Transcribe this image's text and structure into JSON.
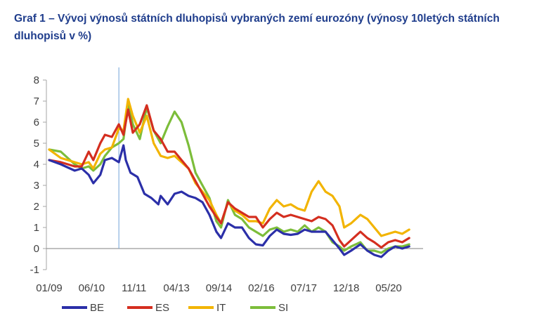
{
  "title_line1": "Graf 1 – Vývoj výnosů státních dluhopisů vybraných zemí eurozóny (výnosy 10letých státních",
  "title_line2": "dluhopisů v %)",
  "chart_data": {
    "type": "line",
    "title": "Graf 1 – Vývoj výnosů státních dluhopisů vybraných zemí eurozóny (výnosy 10letých státních dluhopisů v %)",
    "xlabel": "",
    "ylabel": "",
    "x_range": [
      "2009-01",
      "2022-06"
    ],
    "ylim": [
      -1,
      8
    ],
    "y_ticks": [
      -1,
      0,
      1,
      2,
      3,
      4,
      5,
      6,
      7,
      8
    ],
    "x_tick_labels": [
      "01/09",
      "06/10",
      "11/11",
      "04/13",
      "09/14",
      "02/16",
      "07/17",
      "12/18",
      "05/20"
    ],
    "grid": false,
    "legend_position": "bottom",
    "vertical_marker": "2011-07",
    "series": [
      {
        "name": "BE",
        "color": "#2b2fa8",
        "points": [
          [
            "2009-01",
            4.2
          ],
          [
            "2009-06",
            4.0
          ],
          [
            "2009-12",
            3.7
          ],
          [
            "2010-03",
            3.8
          ],
          [
            "2010-06",
            3.5
          ],
          [
            "2010-08",
            3.1
          ],
          [
            "2010-11",
            3.5
          ],
          [
            "2011-01",
            4.2
          ],
          [
            "2011-04",
            4.3
          ],
          [
            "2011-07",
            4.1
          ],
          [
            "2011-09",
            4.9
          ],
          [
            "2011-10",
            4.2
          ],
          [
            "2011-12",
            3.6
          ],
          [
            "2012-03",
            3.4
          ],
          [
            "2012-06",
            2.6
          ],
          [
            "2012-09",
            2.4
          ],
          [
            "2012-12",
            2.1
          ],
          [
            "2013-01",
            2.5
          ],
          [
            "2013-04",
            2.1
          ],
          [
            "2013-07",
            2.6
          ],
          [
            "2013-10",
            2.7
          ],
          [
            "2014-01",
            2.5
          ],
          [
            "2014-04",
            2.4
          ],
          [
            "2014-07",
            2.2
          ],
          [
            "2014-10",
            1.6
          ],
          [
            "2015-01",
            0.8
          ],
          [
            "2015-03",
            0.5
          ],
          [
            "2015-06",
            1.2
          ],
          [
            "2015-09",
            1.0
          ],
          [
            "2015-12",
            1.0
          ],
          [
            "2016-03",
            0.5
          ],
          [
            "2016-06",
            0.2
          ],
          [
            "2016-09",
            0.15
          ],
          [
            "2016-12",
            0.6
          ],
          [
            "2017-03",
            0.9
          ],
          [
            "2017-06",
            0.7
          ],
          [
            "2017-09",
            0.65
          ],
          [
            "2017-12",
            0.7
          ],
          [
            "2018-03",
            0.9
          ],
          [
            "2018-06",
            0.8
          ],
          [
            "2018-09",
            0.8
          ],
          [
            "2018-12",
            0.8
          ],
          [
            "2019-03",
            0.4
          ],
          [
            "2019-06",
            0.0
          ],
          [
            "2019-08",
            -0.3
          ],
          [
            "2019-11",
            -0.1
          ],
          [
            "2020-03",
            0.2
          ],
          [
            "2020-06",
            -0.1
          ],
          [
            "2020-09",
            -0.3
          ],
          [
            "2020-12",
            -0.4
          ],
          [
            "2021-03",
            -0.1
          ],
          [
            "2021-06",
            0.1
          ],
          [
            "2021-09",
            0.0
          ],
          [
            "2021-12",
            0.1
          ]
        ]
      },
      {
        "name": "ES",
        "color": "#d42e1f",
        "points": [
          [
            "2009-01",
            4.2
          ],
          [
            "2009-06",
            4.1
          ],
          [
            "2009-12",
            3.9
          ],
          [
            "2010-03",
            3.9
          ],
          [
            "2010-06",
            4.6
          ],
          [
            "2010-08",
            4.2
          ],
          [
            "2010-11",
            5.0
          ],
          [
            "2011-01",
            5.4
          ],
          [
            "2011-04",
            5.3
          ],
          [
            "2011-07",
            5.9
          ],
          [
            "2011-09",
            5.4
          ],
          [
            "2011-11",
            6.6
          ],
          [
            "2012-01",
            5.5
          ],
          [
            "2012-04",
            5.9
          ],
          [
            "2012-07",
            6.8
          ],
          [
            "2012-10",
            5.6
          ],
          [
            "2013-01",
            5.2
          ],
          [
            "2013-04",
            4.6
          ],
          [
            "2013-07",
            4.6
          ],
          [
            "2013-10",
            4.2
          ],
          [
            "2014-01",
            3.8
          ],
          [
            "2014-04",
            3.2
          ],
          [
            "2014-07",
            2.6
          ],
          [
            "2014-10",
            2.0
          ],
          [
            "2015-01",
            1.5
          ],
          [
            "2015-03",
            1.2
          ],
          [
            "2015-06",
            2.2
          ],
          [
            "2015-09",
            1.9
          ],
          [
            "2015-12",
            1.7
          ],
          [
            "2016-03",
            1.5
          ],
          [
            "2016-06",
            1.5
          ],
          [
            "2016-09",
            1.0
          ],
          [
            "2016-12",
            1.4
          ],
          [
            "2017-03",
            1.7
          ],
          [
            "2017-06",
            1.5
          ],
          [
            "2017-09",
            1.6
          ],
          [
            "2017-12",
            1.5
          ],
          [
            "2018-03",
            1.4
          ],
          [
            "2018-06",
            1.3
          ],
          [
            "2018-09",
            1.5
          ],
          [
            "2018-12",
            1.4
          ],
          [
            "2019-03",
            1.1
          ],
          [
            "2019-06",
            0.4
          ],
          [
            "2019-08",
            0.1
          ],
          [
            "2019-11",
            0.4
          ],
          [
            "2020-03",
            0.8
          ],
          [
            "2020-06",
            0.5
          ],
          [
            "2020-09",
            0.3
          ],
          [
            "2020-12",
            0.05
          ],
          [
            "2021-03",
            0.3
          ],
          [
            "2021-06",
            0.4
          ],
          [
            "2021-09",
            0.3
          ],
          [
            "2021-12",
            0.5
          ]
        ]
      },
      {
        "name": "IT",
        "color": "#f2b400",
        "points": [
          [
            "2009-01",
            4.7
          ],
          [
            "2009-06",
            4.3
          ],
          [
            "2009-12",
            4.1
          ],
          [
            "2010-03",
            4.0
          ],
          [
            "2010-06",
            4.1
          ],
          [
            "2010-08",
            3.8
          ],
          [
            "2010-11",
            4.5
          ],
          [
            "2011-01",
            4.7
          ],
          [
            "2011-04",
            4.8
          ],
          [
            "2011-07",
            5.7
          ],
          [
            "2011-09",
            5.6
          ],
          [
            "2011-11",
            7.1
          ],
          [
            "2012-01",
            6.3
          ],
          [
            "2012-04",
            5.5
          ],
          [
            "2012-07",
            6.3
          ],
          [
            "2012-10",
            5.0
          ],
          [
            "2013-01",
            4.4
          ],
          [
            "2013-04",
            4.3
          ],
          [
            "2013-07",
            4.4
          ],
          [
            "2013-10",
            4.1
          ],
          [
            "2014-01",
            3.8
          ],
          [
            "2014-04",
            3.1
          ],
          [
            "2014-07",
            2.7
          ],
          [
            "2014-10",
            2.3
          ],
          [
            "2015-01",
            1.6
          ],
          [
            "2015-03",
            1.2
          ],
          [
            "2015-06",
            2.2
          ],
          [
            "2015-09",
            1.8
          ],
          [
            "2015-12",
            1.6
          ],
          [
            "2016-03",
            1.3
          ],
          [
            "2016-06",
            1.3
          ],
          [
            "2016-09",
            1.2
          ],
          [
            "2016-12",
            1.9
          ],
          [
            "2017-03",
            2.3
          ],
          [
            "2017-06",
            2.0
          ],
          [
            "2017-09",
            2.1
          ],
          [
            "2017-12",
            1.9
          ],
          [
            "2018-03",
            1.8
          ],
          [
            "2018-06",
            2.7
          ],
          [
            "2018-09",
            3.2
          ],
          [
            "2018-12",
            2.7
          ],
          [
            "2019-03",
            2.5
          ],
          [
            "2019-06",
            2.0
          ],
          [
            "2019-08",
            1.0
          ],
          [
            "2019-11",
            1.2
          ],
          [
            "2020-03",
            1.6
          ],
          [
            "2020-06",
            1.4
          ],
          [
            "2020-09",
            1.0
          ],
          [
            "2020-12",
            0.6
          ],
          [
            "2021-03",
            0.7
          ],
          [
            "2021-06",
            0.8
          ],
          [
            "2021-09",
            0.7
          ],
          [
            "2021-12",
            0.9
          ]
        ]
      },
      {
        "name": "SI",
        "color": "#7cbd3a",
        "points": [
          [
            "2009-01",
            4.7
          ],
          [
            "2009-06",
            4.6
          ],
          [
            "2009-12",
            4.0
          ],
          [
            "2010-03",
            3.8
          ],
          [
            "2010-06",
            3.9
          ],
          [
            "2010-08",
            3.7
          ],
          [
            "2010-11",
            4.0
          ],
          [
            "2011-01",
            4.4
          ],
          [
            "2011-04",
            4.8
          ],
          [
            "2011-07",
            5.0
          ],
          [
            "2011-09",
            5.2
          ],
          [
            "2011-11",
            6.9
          ],
          [
            "2012-01",
            5.9
          ],
          [
            "2012-04",
            5.2
          ],
          [
            "2012-07",
            6.7
          ],
          [
            "2012-10",
            5.6
          ],
          [
            "2013-01",
            5.0
          ],
          [
            "2013-04",
            5.8
          ],
          [
            "2013-07",
            6.5
          ],
          [
            "2013-10",
            6.0
          ],
          [
            "2014-01",
            4.9
          ],
          [
            "2014-04",
            3.6
          ],
          [
            "2014-07",
            3.0
          ],
          [
            "2014-10",
            2.4
          ],
          [
            "2015-01",
            1.3
          ],
          [
            "2015-03",
            1.0
          ],
          [
            "2015-06",
            2.3
          ],
          [
            "2015-09",
            1.6
          ],
          [
            "2015-12",
            1.4
          ],
          [
            "2016-03",
            1.0
          ],
          [
            "2016-06",
            0.8
          ],
          [
            "2016-09",
            0.6
          ],
          [
            "2016-12",
            0.9
          ],
          [
            "2017-03",
            1.0
          ],
          [
            "2017-06",
            0.8
          ],
          [
            "2017-09",
            0.9
          ],
          [
            "2017-12",
            0.8
          ],
          [
            "2018-03",
            1.1
          ],
          [
            "2018-06",
            0.8
          ],
          [
            "2018-09",
            1.0
          ],
          [
            "2018-12",
            0.8
          ],
          [
            "2019-03",
            0.3
          ],
          [
            "2019-06",
            0.1
          ],
          [
            "2019-08",
            -0.1
          ],
          [
            "2019-11",
            0.1
          ],
          [
            "2020-03",
            0.3
          ],
          [
            "2020-06",
            -0.1
          ],
          [
            "2020-09",
            -0.1
          ],
          [
            "2020-12",
            -0.2
          ],
          [
            "2021-03",
            0.0
          ],
          [
            "2021-06",
            0.1
          ],
          [
            "2021-09",
            0.1
          ],
          [
            "2021-12",
            0.2
          ]
        ]
      }
    ]
  }
}
